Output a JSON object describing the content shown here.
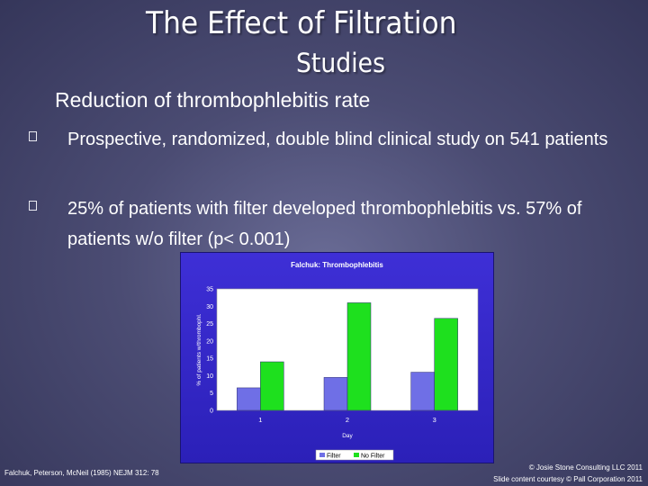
{
  "slide": {
    "title_line1": "The Effect of Filtration",
    "title_line2": "Studies",
    "subtitle": "Reduction of thrombophlebitis rate",
    "bullets": [
      "Prospective, randomized, double blind clinical study on 541 patients",
      "25% of patients with filter developed thrombophlebitis  vs. 57% of patients w/o filter (p< 0.001)"
    ],
    "footer_left": "Falchuk, Peterson, McNeil (1985) NEJM 312: 78",
    "footer_right_1": "© Josie Stone Consulting LLC 2011",
    "footer_right_2": "Slide content courtesy © Pall Corporation 2011"
  },
  "colors": {
    "filter_bar": "#6f6fe6",
    "no_filter_bar": "#1ee01e",
    "plot_background": "#ffffff",
    "chart_background": "#3a2cd0"
  },
  "chart_data": {
    "type": "bar",
    "title": "Falchuk: Thrombophlebitis",
    "xlabel": "Day",
    "ylabel": "% of patients w/thrombophl.",
    "categories": [
      "1",
      "2",
      "3"
    ],
    "ylim": [
      0,
      35
    ],
    "yticks": [
      "0",
      "5",
      "10",
      "15",
      "20",
      "25",
      "30",
      "35"
    ],
    "series": [
      {
        "name": "Filter",
        "values": [
          6.5,
          9.5,
          11
        ]
      },
      {
        "name": "No Filter",
        "values": [
          14,
          31,
          26.5
        ]
      }
    ],
    "legend": "bottom"
  }
}
